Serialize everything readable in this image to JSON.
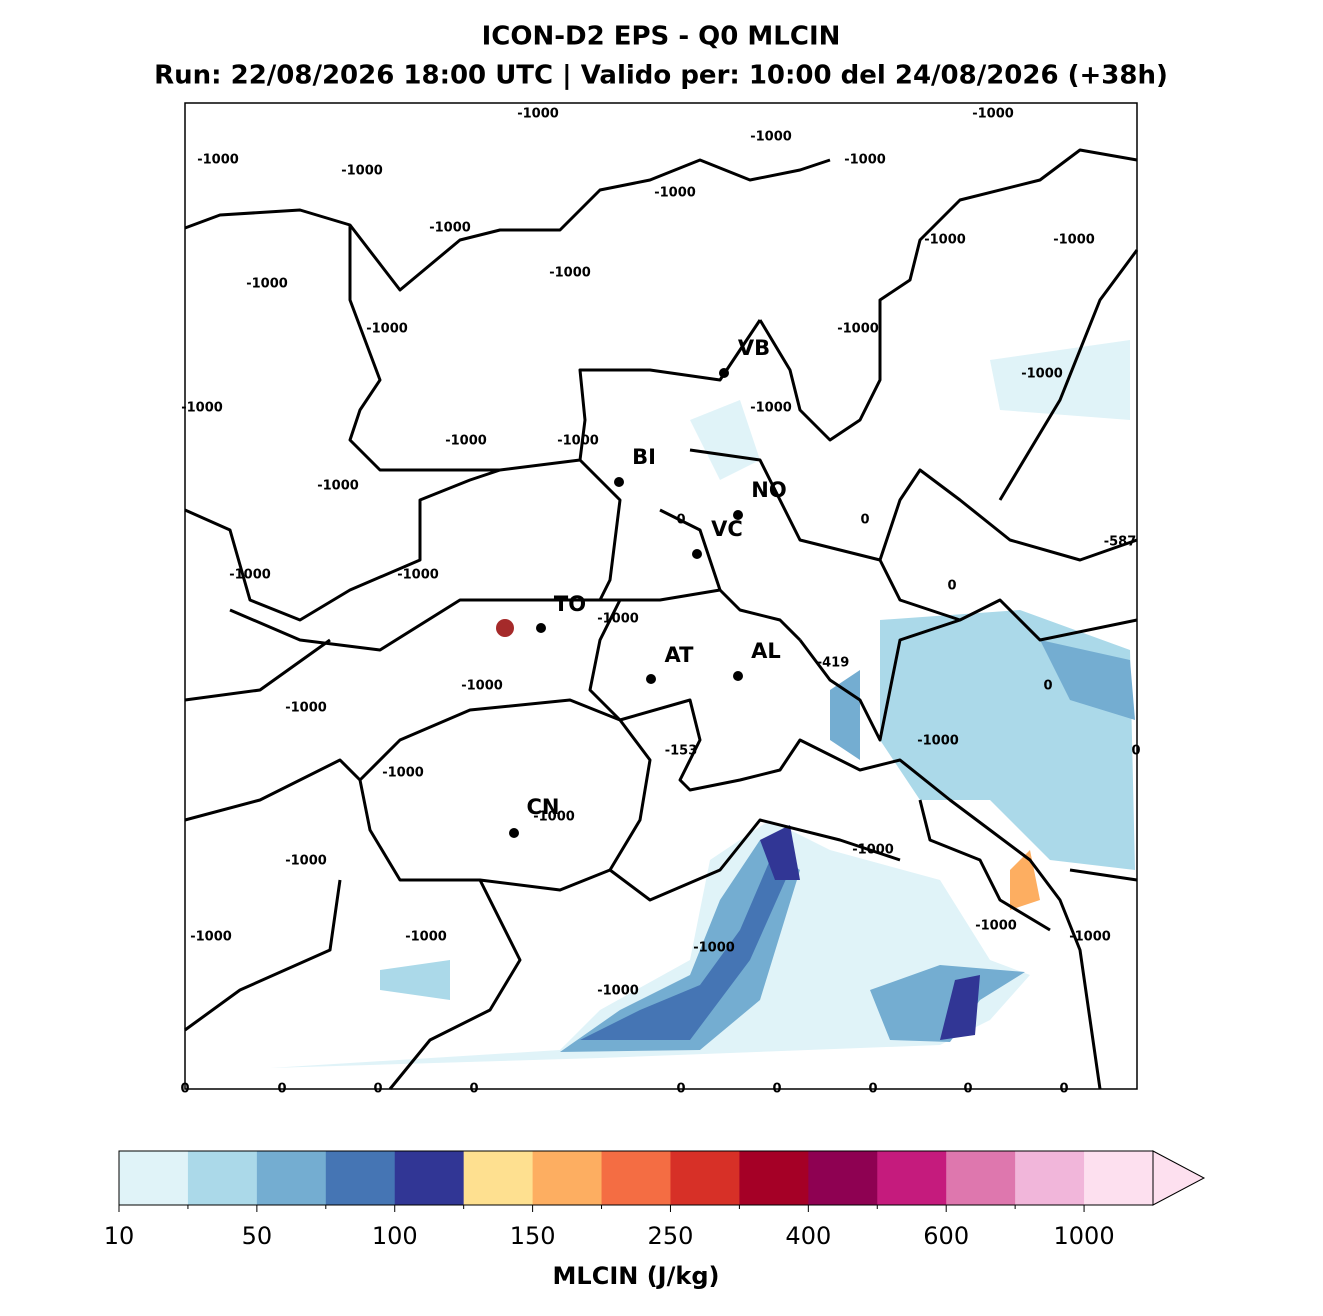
{
  "header": {
    "title": "ICON-D2 EPS - Q0 MLCIN",
    "subtitle": "Run: 22/08/2026 18:00 UTC | Valido per: 10:00 del 24/08/2026 (+38h)"
  },
  "map": {
    "cities": [
      "VB",
      "BI",
      "NO",
      "VC",
      "TO",
      "AT",
      "AL",
      "CN"
    ],
    "contour_labels": [
      -1000,
      -1000,
      -1000,
      -1000,
      -1000,
      -1000,
      -1000,
      -1000,
      -1000,
      -1000,
      -1000,
      -1000,
      -1000,
      -1000,
      -1000,
      -1000,
      -1000,
      -1000,
      -1000,
      -1000,
      0,
      0,
      -587,
      -1000,
      -1000,
      0,
      -1000,
      -419,
      0,
      -1000,
      -1000,
      -1000,
      0,
      -153,
      -1000,
      -1000,
      -1000,
      -1000,
      -1000,
      -1000,
      -1000,
      -1000,
      -1000,
      -1000,
      0,
      0,
      0,
      0,
      0,
      0,
      0,
      0,
      0
    ]
  },
  "colorbar": {
    "label": "MLCIN (J/kg)",
    "colors": [
      "#e0f3f8",
      "#abd9e9",
      "#74add1",
      "#4575b4",
      "#313695",
      "#fee090",
      "#fdae61",
      "#f46d43",
      "#d73027",
      "#a50026",
      "#8e0152",
      "#c51b7d",
      "#de77ae",
      "#f1b6da",
      "#fde0ef"
    ],
    "extend_color": "#fde0ef",
    "ticks": [
      10,
      50,
      100,
      150,
      250,
      400,
      600,
      1000
    ]
  }
}
